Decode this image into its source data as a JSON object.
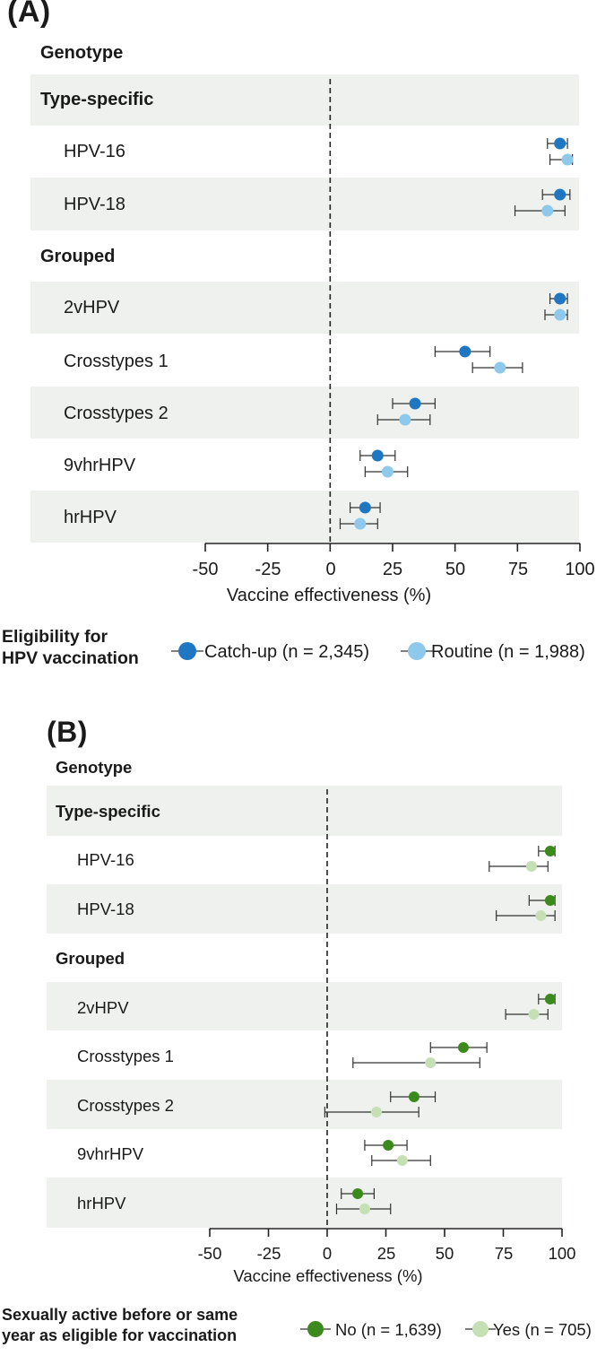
{
  "chart_data": [
    {
      "type": "forest",
      "panel_label": "(A)",
      "xlabel": "Vaccine effectiveness (%)",
      "xlim": [
        -50,
        100
      ],
      "ticks": [
        "-50",
        "-25",
        "0",
        "25",
        "50",
        "75",
        "100"
      ],
      "tick_values": [
        -50,
        -25,
        0,
        25,
        50,
        75,
        100
      ],
      "reference_line": 0,
      "sections": [
        {
          "label": "Genotype"
        },
        {
          "label": "Type-specific"
        },
        {
          "label": "Grouped"
        }
      ],
      "rows": [
        {
          "label": "HPV-16"
        },
        {
          "label": "HPV-18"
        },
        {
          "label": "2vHPV"
        },
        {
          "label": "Crosstypes 1"
        },
        {
          "label": "Crosstypes 2"
        },
        {
          "label": "9vhrHPV"
        },
        {
          "label": "hrHPV"
        }
      ],
      "legend_title": [
        "Eligibility for",
        "HPV vaccination"
      ],
      "series": [
        {
          "name": "Catch-up (n = 2,345)",
          "color": "#1f77c4",
          "estimates": [
            92,
            92,
            92,
            54,
            34,
            19,
            14
          ],
          "ci_low": [
            87,
            85,
            88,
            42,
            25,
            12,
            8
          ],
          "ci_high": [
            95,
            96,
            95,
            64,
            42,
            26,
            20
          ]
        },
        {
          "name": "Routine (n = 1,988)",
          "color": "#8ec9ec",
          "estimates": [
            95,
            87,
            92,
            68,
            30,
            23,
            12
          ],
          "ci_low": [
            88,
            74,
            86,
            57,
            19,
            14,
            4
          ],
          "ci_high": [
            97,
            94,
            95,
            77,
            40,
            31,
            19
          ]
        }
      ]
    },
    {
      "type": "forest",
      "panel_label": "(B)",
      "xlabel": "Vaccine effectiveness (%)",
      "xlim": [
        -50,
        100
      ],
      "ticks": [
        "-50",
        "-25",
        "0",
        "25",
        "50",
        "75",
        "100"
      ],
      "tick_values": [
        -50,
        -25,
        0,
        25,
        50,
        75,
        100
      ],
      "reference_line": 0,
      "sections": [
        {
          "label": "Genotype"
        },
        {
          "label": "Type-specific"
        },
        {
          "label": "Grouped"
        }
      ],
      "rows": [
        {
          "label": "HPV-16"
        },
        {
          "label": "HPV-18"
        },
        {
          "label": "2vHPV"
        },
        {
          "label": "Crosstypes 1"
        },
        {
          "label": "Crosstypes 2"
        },
        {
          "label": "9vhrHPV"
        },
        {
          "label": "hrHPV"
        }
      ],
      "legend_title": [
        "Sexually active before or same",
        "year as eligible for vaccination"
      ],
      "series": [
        {
          "name": "No (n = 1,639)",
          "color": "#3c8a1e",
          "estimates": [
            95,
            95,
            95,
            58,
            37,
            26,
            13
          ],
          "ci_low": [
            90,
            86,
            90,
            44,
            27,
            16,
            6
          ],
          "ci_high": [
            97,
            97,
            97,
            68,
            46,
            34,
            20
          ]
        },
        {
          "name": "Yes (n = 705)",
          "color": "#c5e0b4",
          "estimates": [
            87,
            91,
            88,
            44,
            21,
            32,
            16
          ],
          "ci_low": [
            69,
            72,
            76,
            11,
            -1,
            19,
            4
          ],
          "ci_high": [
            94,
            97,
            94,
            65,
            39,
            44,
            27
          ]
        }
      ]
    }
  ]
}
